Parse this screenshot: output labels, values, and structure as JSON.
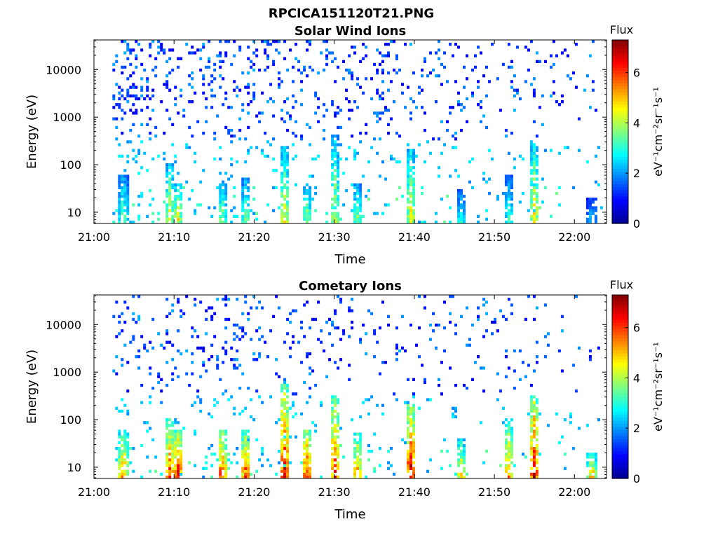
{
  "figure_title": "RPCICA151120T21.PNG",
  "colors": {
    "jet": [
      "#00008f",
      "#0000ff",
      "#0080ff",
      "#00ffff",
      "#80ff80",
      "#ffff00",
      "#ff8000",
      "#ff0000",
      "#800000"
    ]
  },
  "chart_data": [
    {
      "type": "heatmap",
      "title": "Solar Wind Ions",
      "xlabel": "Time",
      "ylabel": "Energy (eV)",
      "x_ticks": [
        "21:00",
        "21:10",
        "21:20",
        "21:30",
        "21:40",
        "21:50",
        "22:00"
      ],
      "x_range_minutes": [
        0,
        64
      ],
      "y_ticks": [
        "10",
        "100",
        "1000",
        "10000"
      ],
      "y_scale": "log",
      "y_range_eV": [
        5.8,
        42000
      ],
      "colorbar": {
        "title": "Flux",
        "label": "eV⁻¹cm⁻²sr⁻¹s⁻¹",
        "ticks": [
          "0",
          "2",
          "4",
          "6"
        ],
        "range": [
          0,
          7.3
        ]
      },
      "data_start_minute": 2.3,
      "data_end_minute": 63.5,
      "bursts": [
        {
          "t": 3.5,
          "peak": 3.6,
          "top_eV": 60
        },
        {
          "t": 9.3,
          "peak": 4.5,
          "top_eV": 100
        },
        {
          "t": 10.3,
          "peak": 4.6,
          "top_eV": 40
        },
        {
          "t": 15.8,
          "peak": 4.0,
          "top_eV": 40
        },
        {
          "t": 18.8,
          "peak": 3.8,
          "top_eV": 50
        },
        {
          "t": 23.6,
          "peak": 4.6,
          "top_eV": 220
        },
        {
          "t": 26.4,
          "peak": 4.0,
          "top_eV": 40
        },
        {
          "t": 29.9,
          "peak": 4.2,
          "top_eV": 400
        },
        {
          "t": 32.7,
          "peak": 3.8,
          "top_eV": 40
        },
        {
          "t": 39.4,
          "peak": 4.6,
          "top_eV": 200
        },
        {
          "t": 45.6,
          "peak": 3.0,
          "top_eV": 30
        },
        {
          "t": 51.6,
          "peak": 3.2,
          "top_eV": 60
        },
        {
          "t": 54.8,
          "peak": 4.7,
          "top_eV": 250
        },
        {
          "t": 62.0,
          "peak": 2.5,
          "top_eV": 20
        }
      ]
    },
    {
      "type": "heatmap",
      "title": "Cometary Ions",
      "xlabel": "Time",
      "ylabel": "Energy (eV)",
      "x_ticks": [
        "21:00",
        "21:10",
        "21:20",
        "21:30",
        "21:40",
        "21:50",
        "22:00"
      ],
      "x_range_minutes": [
        0,
        64
      ],
      "y_ticks": [
        "10",
        "100",
        "1000",
        "10000"
      ],
      "y_scale": "log",
      "y_range_eV": [
        5.8,
        42000
      ],
      "colorbar": {
        "title": "Flux",
        "label": "eV⁻¹cm⁻²sr⁻¹s⁻¹",
        "ticks": [
          "0",
          "2",
          "4",
          "6"
        ],
        "range": [
          0,
          7.3
        ]
      },
      "data_start_minute": 2.3,
      "data_end_minute": 63.5,
      "bursts": [
        {
          "t": 3.5,
          "peak": 5.8,
          "top_eV": 60
        },
        {
          "t": 9.3,
          "peak": 6.0,
          "top_eV": 100
        },
        {
          "t": 10.3,
          "peak": 6.6,
          "top_eV": 60
        },
        {
          "t": 15.8,
          "peak": 6.4,
          "top_eV": 60
        },
        {
          "t": 18.8,
          "peak": 6.2,
          "top_eV": 60
        },
        {
          "t": 23.6,
          "peak": 6.8,
          "top_eV": 500
        },
        {
          "t": 26.4,
          "peak": 6.6,
          "top_eV": 60
        },
        {
          "t": 29.9,
          "peak": 6.3,
          "top_eV": 300
        },
        {
          "t": 32.7,
          "peak": 5.5,
          "top_eV": 50
        },
        {
          "t": 39.4,
          "peak": 7.0,
          "top_eV": 200
        },
        {
          "t": 45.6,
          "peak": 5.0,
          "top_eV": 40
        },
        {
          "t": 51.6,
          "peak": 5.5,
          "top_eV": 100
        },
        {
          "t": 54.8,
          "peak": 6.8,
          "top_eV": 300
        },
        {
          "t": 62.0,
          "peak": 5.2,
          "top_eV": 20
        }
      ]
    }
  ]
}
